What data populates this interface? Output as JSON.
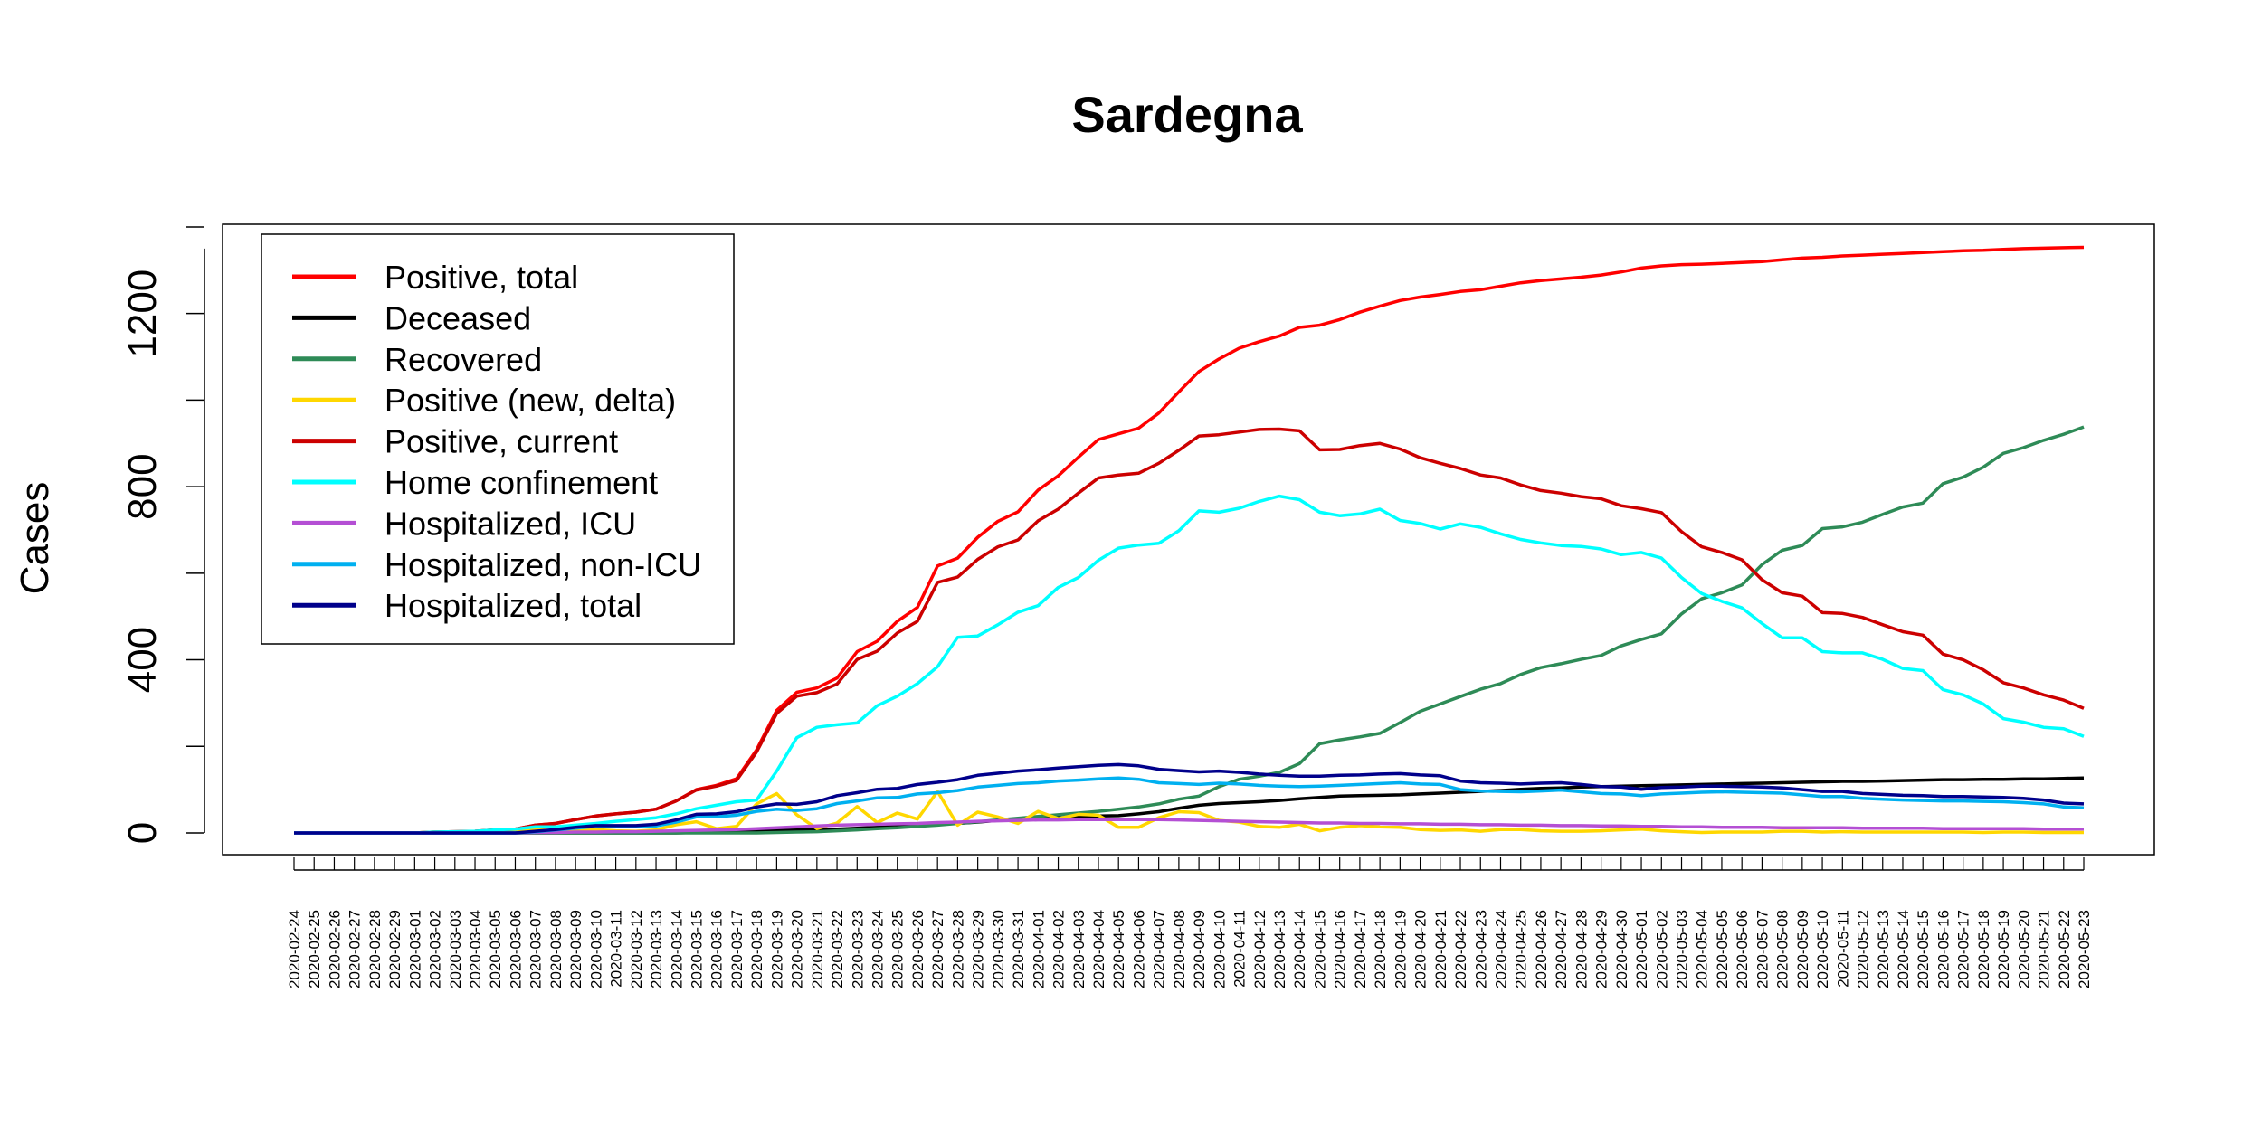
{
  "chart_data": {
    "type": "line",
    "title": "Sardegna",
    "xlabel": "",
    "ylabel": "Cases",
    "ylim": [
      0,
      1400
    ],
    "y_ticks": [
      0,
      400,
      800,
      1200
    ],
    "grid": false,
    "legend_position": "top-left",
    "x": [
      "2020-02-24",
      "2020-02-25",
      "2020-02-26",
      "2020-02-27",
      "2020-02-28",
      "2020-02-29",
      "2020-03-01",
      "2020-03-02",
      "2020-03-03",
      "2020-03-04",
      "2020-03-05",
      "2020-03-06",
      "2020-03-07",
      "2020-03-08",
      "2020-03-09",
      "2020-03-10",
      "2020-03-11",
      "2020-03-12",
      "2020-03-13",
      "2020-03-14",
      "2020-03-15",
      "2020-03-16",
      "2020-03-17",
      "2020-03-18",
      "2020-03-19",
      "2020-03-20",
      "2020-03-21",
      "2020-03-22",
      "2020-03-23",
      "2020-03-24",
      "2020-03-25",
      "2020-03-26",
      "2020-03-27",
      "2020-03-28",
      "2020-03-29",
      "2020-03-30",
      "2020-03-31",
      "2020-04-01",
      "2020-04-02",
      "2020-04-03",
      "2020-04-04",
      "2020-04-05",
      "2020-04-06",
      "2020-04-07",
      "2020-04-08",
      "2020-04-09",
      "2020-04-10",
      "2020-04-11",
      "2020-04-12",
      "2020-04-13",
      "2020-04-14",
      "2020-04-15",
      "2020-04-16",
      "2020-04-17",
      "2020-04-18",
      "2020-04-19",
      "2020-04-20",
      "2020-04-21",
      "2020-04-22",
      "2020-04-23",
      "2020-04-24",
      "2020-04-25",
      "2020-04-26",
      "2020-04-27",
      "2020-04-28",
      "2020-04-29",
      "2020-04-30",
      "2020-05-01",
      "2020-05-02",
      "2020-05-03",
      "2020-05-04",
      "2020-05-05",
      "2020-05-06",
      "2020-05-07",
      "2020-05-08",
      "2020-05-09",
      "2020-05-10",
      "2020-05-11",
      "2020-05-12",
      "2020-05-13",
      "2020-05-14",
      "2020-05-15",
      "2020-05-16",
      "2020-05-17",
      "2020-05-18",
      "2020-05-19",
      "2020-05-20",
      "2020-05-21",
      "2020-05-22",
      "2020-05-23"
    ],
    "series": [
      {
        "name": "Positive, total",
        "color": "#ff0000",
        "values": [
          0,
          0,
          0,
          0,
          0,
          0,
          0,
          2,
          3,
          4,
          7,
          9,
          18,
          22,
          31,
          39,
          44,
          48,
          55,
          74,
          100,
          110,
          125,
          192,
          283,
          325,
          335,
          358,
          419,
          443,
          489,
          521,
          617,
          635,
          683,
          720,
          742,
          792,
          825,
          868,
          909,
          922,
          935,
          970,
          1019,
          1066,
          1095,
          1120,
          1135,
          1148,
          1168,
          1173,
          1186,
          1203,
          1217,
          1230,
          1238,
          1244,
          1251,
          1255,
          1263,
          1271,
          1276,
          1280,
          1284,
          1289,
          1296,
          1305,
          1310,
          1313,
          1314,
          1316,
          1318,
          1320,
          1324,
          1328,
          1330,
          1333,
          1335,
          1337,
          1339,
          1341,
          1343,
          1345,
          1346,
          1348,
          1350,
          1351,
          1352,
          1353
        ]
      },
      {
        "name": "Deceased",
        "color": "#000000",
        "values": [
          0,
          0,
          0,
          0,
          0,
          0,
          0,
          0,
          0,
          0,
          0,
          0,
          0,
          0,
          0,
          0,
          0,
          0,
          0,
          0,
          1,
          2,
          4,
          5,
          6,
          7,
          8,
          9,
          11,
          13,
          15,
          17,
          20,
          22,
          25,
          29,
          31,
          33,
          35,
          37,
          39,
          40,
          44,
          49,
          57,
          64,
          68,
          70,
          72,
          75,
          79,
          82,
          85,
          86,
          87,
          88,
          90,
          92,
          94,
          96,
          98,
          101,
          103,
          104,
          106,
          107,
          108,
          109,
          110,
          111,
          112,
          113,
          114,
          115,
          116,
          117,
          118,
          119,
          119,
          120,
          121,
          122,
          123,
          123,
          124,
          124,
          125,
          125,
          126,
          127
        ]
      },
      {
        "name": "Recovered",
        "color": "#2e8b57",
        "values": [
          0,
          0,
          0,
          0,
          0,
          0,
          0,
          0,
          0,
          0,
          0,
          0,
          0,
          0,
          0,
          0,
          0,
          0,
          0,
          0,
          0,
          0,
          0,
          0,
          1,
          2,
          3,
          5,
          7,
          10,
          12,
          15,
          18,
          22,
          26,
          30,
          34,
          38,
          42,
          46,
          50,
          55,
          60,
          67,
          78,
          85,
          107,
          124,
          131,
          140,
          160,
          206,
          215,
          222,
          230,
          255,
          281,
          298,
          315,
          332,
          345,
          366,
          382,
          391,
          401,
          410,
          432,
          447,
          460,
          506,
          541,
          555,
          573,
          620,
          653,
          664,
          703,
          707,
          718,
          736,
          753,
          762,
          807,
          822,
          845,
          877,
          890,
          907,
          921,
          938
        ]
      },
      {
        "name": "Positive (new, delta)",
        "color": "#ffd700",
        "values": [
          0,
          0,
          0,
          0,
          0,
          0,
          0,
          2,
          1,
          1,
          3,
          2,
          9,
          4,
          9,
          8,
          5,
          4,
          7,
          19,
          26,
          10,
          15,
          67,
          91,
          42,
          10,
          23,
          61,
          24,
          46,
          32,
          96,
          18,
          48,
          37,
          22,
          50,
          33,
          43,
          41,
          13,
          13,
          35,
          49,
          47,
          29,
          25,
          15,
          13,
          20,
          5,
          13,
          17,
          14,
          13,
          8,
          6,
          7,
          4,
          8,
          8,
          5,
          4,
          4,
          5,
          7,
          9,
          5,
          3,
          1,
          2,
          2,
          2,
          4,
          4,
          2,
          3,
          2,
          2,
          2,
          2,
          2,
          2,
          1,
          2,
          2,
          1,
          1,
          1
        ]
      },
      {
        "name": "Positive, current",
        "color": "#cc0000",
        "values": [
          0,
          0,
          0,
          0,
          0,
          0,
          0,
          2,
          3,
          4,
          7,
          9,
          18,
          22,
          31,
          39,
          44,
          48,
          55,
          74,
          99,
          108,
          121,
          187,
          276,
          316,
          324,
          344,
          401,
          420,
          462,
          489,
          579,
          591,
          632,
          661,
          677,
          721,
          748,
          785,
          820,
          827,
          831,
          854,
          884,
          917,
          920,
          926,
          932,
          933,
          929,
          885,
          886,
          895,
          900,
          887,
          867,
          854,
          842,
          827,
          820,
          804,
          791,
          785,
          777,
          772,
          756,
          749,
          740,
          696,
          661,
          648,
          631,
          585,
          555,
          547,
          509,
          507,
          498,
          481,
          465,
          457,
          413,
          400,
          377,
          347,
          335,
          319,
          307,
          288
        ]
      },
      {
        "name": "Home confinement",
        "color": "#00ffff",
        "values": [
          0,
          0,
          0,
          0,
          0,
          0,
          0,
          2,
          3,
          4,
          7,
          9,
          14,
          14,
          18,
          22,
          27,
          31,
          35,
          44,
          56,
          64,
          72,
          76,
          143,
          220,
          244,
          250,
          254,
          294,
          316,
          345,
          384,
          452,
          455,
          481,
          510,
          525,
          567,
          590,
          630,
          658,
          665,
          669,
          698,
          744,
          741,
          750,
          766,
          778,
          770,
          741,
          733,
          737,
          748,
          722,
          715,
          702,
          714,
          706,
          691,
          678,
          670,
          664,
          662,
          656,
          643,
          648,
          635,
          590,
          553,
          535,
          520,
          484,
          451,
          451,
          419,
          416,
          416,
          401,
          380,
          375,
          331,
          319,
          298,
          264,
          256,
          244,
          241,
          223
        ]
      },
      {
        "name": "Hospitalized, ICU",
        "color": "#b44fd4",
        "values": [
          0,
          0,
          0,
          0,
          0,
          0,
          0,
          0,
          0,
          0,
          0,
          0,
          1,
          1,
          2,
          2,
          3,
          3,
          4,
          5,
          6,
          7,
          8,
          10,
          12,
          14,
          16,
          18,
          19,
          20,
          21,
          22,
          24,
          25,
          27,
          28,
          29,
          30,
          30,
          31,
          31,
          31,
          31,
          31,
          30,
          29,
          28,
          27,
          26,
          25,
          24,
          23,
          23,
          22,
          22,
          21,
          21,
          20,
          20,
          19,
          19,
          18,
          18,
          17,
          17,
          16,
          16,
          15,
          15,
          14,
          14,
          13,
          13,
          13,
          12,
          12,
          12,
          12,
          11,
          11,
          11,
          11,
          10,
          10,
          10,
          10,
          10,
          9,
          9,
          9
        ]
      },
      {
        "name": "Hospitalized, non-ICU",
        "color": "#00b0f0",
        "values": [
          0,
          0,
          0,
          0,
          0,
          0,
          0,
          0,
          0,
          0,
          0,
          0,
          3,
          7,
          11,
          15,
          14,
          14,
          16,
          25,
          37,
          37,
          41,
          50,
          55,
          52,
          56,
          68,
          74,
          81,
          82,
          90,
          93,
          98,
          106,
          110,
          114,
          116,
          120,
          122,
          125,
          127,
          124,
          116,
          114,
          112,
          115,
          113,
          110,
          108,
          107,
          108,
          110,
          112,
          114,
          116,
          113,
          112,
          100,
          97,
          96,
          95,
          97,
          99,
          95,
          91,
          90,
          86,
          90,
          92,
          94,
          95,
          94,
          93,
          92,
          88,
          84,
          84,
          80,
          78,
          76,
          75,
          74,
          74,
          73,
          72,
          70,
          67,
          60,
          58
        ]
      },
      {
        "name": "Hospitalized, total",
        "color": "#00008b",
        "values": [
          0,
          0,
          0,
          0,
          0,
          0,
          0,
          0,
          0,
          0,
          0,
          0,
          4,
          8,
          13,
          17,
          17,
          17,
          20,
          30,
          43,
          44,
          49,
          60,
          67,
          66,
          72,
          86,
          93,
          101,
          103,
          112,
          117,
          123,
          133,
          138,
          143,
          146,
          150,
          153,
          156,
          158,
          155,
          147,
          144,
          141,
          143,
          140,
          136,
          133,
          131,
          131,
          133,
          134,
          136,
          137,
          134,
          132,
          120,
          116,
          115,
          113,
          115,
          116,
          112,
          107,
          106,
          101,
          105,
          106,
          108,
          108,
          107,
          106,
          104,
          100,
          96,
          96,
          91,
          89,
          87,
          86,
          84,
          84,
          83,
          82,
          80,
          76,
          69,
          67
        ]
      }
    ]
  }
}
